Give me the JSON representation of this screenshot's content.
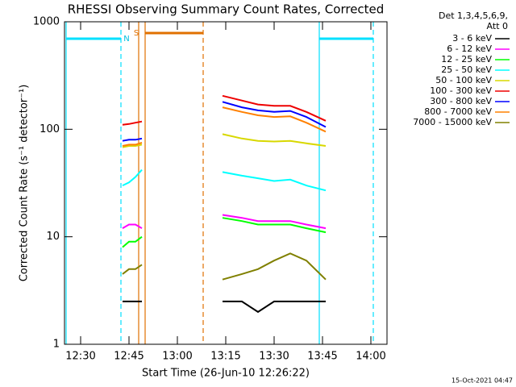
{
  "chart_data": {
    "type": "line",
    "title": "RHESSI Observing Summary Count Rates, Corrected",
    "x_label": "Start Time (26-Jun-10 12:26:22)",
    "y_label": "Corrected Count Rate (s⁻¹ detector⁻¹)",
    "legend_title": [
      "Det 1,3,4,5,6,9,",
      "Att 0"
    ],
    "timestamp": "15-Oct-2021 04:47",
    "annotations": [
      "N",
      "S"
    ],
    "log_y": true,
    "xlim": [
      "12:25",
      "14:05"
    ],
    "xticks": [
      "12:30",
      "12:45",
      "13:00",
      "13:15",
      "13:30",
      "13:45",
      "14:00"
    ],
    "ylim": [
      1,
      1000
    ],
    "yticks": [
      1,
      10,
      100,
      1000
    ],
    "legend": "right",
    "x": [
      "12:43",
      "12:45",
      "12:47",
      "12:49",
      "13:00",
      "13:14",
      "13:20",
      "13:25",
      "13:30",
      "13:35",
      "13:40",
      "13:46"
    ],
    "series": [
      {
        "name": "3 - 6 keV",
        "color": "#000000",
        "values": [
          2.5,
          2.5,
          2.5,
          2.5,
          null,
          2.5,
          2.5,
          2,
          2.5,
          2.5,
          2.5,
          2.5
        ]
      },
      {
        "name": "6 - 12 keV",
        "color": "#ff00ff",
        "values": [
          12,
          13,
          13,
          12,
          null,
          16,
          15,
          14,
          14,
          14,
          13,
          12
        ]
      },
      {
        "name": "12 - 25 keV",
        "color": "#00ff00",
        "values": [
          8,
          9,
          9,
          10,
          null,
          15,
          14,
          13,
          13,
          13,
          12,
          11
        ]
      },
      {
        "name": "25 - 50 keV",
        "color": "#00ffff",
        "values": [
          30,
          32,
          36,
          42,
          null,
          40,
          37,
          35,
          33,
          34,
          30,
          27
        ]
      },
      {
        "name": "50 - 100 keV",
        "color": "#d8d800",
        "values": [
          68,
          70,
          70,
          72,
          null,
          90,
          82,
          78,
          77,
          78,
          74,
          70
        ]
      },
      {
        "name": "100 - 300 keV",
        "color": "#ee0000",
        "values": [
          110,
          112,
          115,
          118,
          null,
          205,
          185,
          170,
          165,
          165,
          145,
          120
        ]
      },
      {
        "name": "300 - 800 keV",
        "color": "#0000ff",
        "values": [
          78,
          80,
          80,
          82,
          null,
          180,
          160,
          150,
          145,
          148,
          130,
          105
        ]
      },
      {
        "name": "800 - 7000 keV",
        "color": "#ff8000",
        "values": [
          70,
          72,
          72,
          75,
          null,
          160,
          145,
          135,
          130,
          132,
          115,
          95
        ]
      },
      {
        "name": "7000 - 15000 keV",
        "color": "#808000",
        "values": [
          4.5,
          5,
          5,
          5.5,
          null,
          4,
          4.5,
          5,
          6,
          7,
          6,
          4
        ]
      }
    ]
  }
}
